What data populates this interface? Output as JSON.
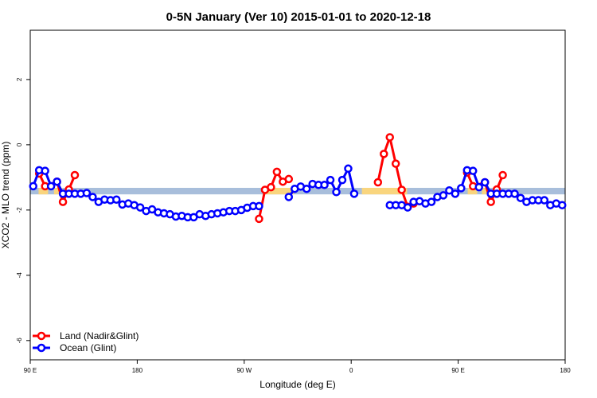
{
  "chart_data": {
    "type": "line",
    "title": "0-5N January (Ver 10)   2015-01-01 to 2020-12-18",
    "x_label": "Longitude (deg E)",
    "y_label": "XCO2 - MLO trend (ppm)",
    "xlim": [
      90,
      540
    ],
    "ylim": [
      3.51,
      -6.59
    ],
    "xticks": [
      {
        "value": 90,
        "label": "90 E"
      },
      180,
      {
        "value": 270,
        "label": "90 W"
      },
      {
        "value": 360,
        "label": "0"
      },
      {
        "value": 450,
        "label": "90 E"
      },
      {
        "value": 540,
        "label": "180"
      }
    ],
    "yticks": [
      -6,
      -4,
      -2,
      0,
      2
    ],
    "band": {
      "range": [
        -1.32,
        -1.52
      ],
      "color": "#a8bedb"
    },
    "highlights": {
      "color": "#f9d57e",
      "ranges": [
        [
          97,
          105
        ],
        [
          110,
          117
        ],
        [
          285.5,
          312
        ],
        [
          369,
          407
        ],
        [
          458,
          466
        ],
        [
          470,
          475.5
        ]
      ]
    },
    "legend": "bottom-left",
    "series": [
      {
        "name": "Land (Nadir&Glint)",
        "color": "#ff0000",
        "x": [
          97.5,
          102.5,
          112.5,
          117.5,
          122.5,
          127.5,
          null,
          282.5,
          287.5,
          292.5,
          297.5,
          302.5,
          307.5,
          null,
          382.5,
          387.5,
          392.5,
          397.5,
          402.5,
          407.5,
          412.5,
          null,
          457.5,
          462.5,
          472.5,
          477.5,
          482.5,
          487.5
        ],
        "values": [
          -0.88,
          -1.27,
          -1.13,
          -1.75,
          -1.37,
          -0.93,
          null,
          -2.27,
          -1.38,
          -1.3,
          -0.83,
          -1.13,
          -1.05,
          null,
          -1.15,
          -0.28,
          0.23,
          -0.58,
          -1.38,
          -1.9,
          -1.8,
          null,
          -0.85,
          -1.27,
          -1.15,
          -1.75,
          -1.37,
          -0.93
        ]
      },
      {
        "name": "Ocean (Glint)",
        "color": "#0000ff",
        "x": [
          92.5,
          97.5,
          102.5,
          107.5,
          112.5,
          117.5,
          122.5,
          127.5,
          132.5,
          137.5,
          142.5,
          147.5,
          152.5,
          157.5,
          162.5,
          167.5,
          172.5,
          177.5,
          182.5,
          187.5,
          192.5,
          197.5,
          202.5,
          207.5,
          212.5,
          217.5,
          222.5,
          227.5,
          232.5,
          237.5,
          242.5,
          247.5,
          252.5,
          257.5,
          262.5,
          267.5,
          272.5,
          277.5,
          282.5,
          null,
          307.5,
          312.5,
          317.5,
          322.5,
          327.5,
          332.5,
          337.5,
          342.5,
          347.5,
          352.5,
          357.5,
          362.5,
          null,
          392.5,
          397.5,
          402.5,
          407.5,
          412.5,
          417.5,
          422.5,
          427.5,
          432.5,
          437.5,
          442.5,
          447.5,
          452.5,
          457.5,
          462.5,
          467.5,
          472.5,
          477.5,
          482.5,
          487.5,
          492.5,
          497.5,
          502.5,
          507.5,
          512.5,
          517.5,
          522.5,
          527.5,
          532.5,
          537.5
        ],
        "values": [
          -1.27,
          -0.78,
          -0.8,
          -1.27,
          -1.13,
          -1.5,
          -1.5,
          -1.5,
          -1.5,
          -1.48,
          -1.6,
          -1.75,
          -1.68,
          -1.7,
          -1.68,
          -1.83,
          -1.8,
          -1.85,
          -1.92,
          -2.03,
          -1.98,
          -2.07,
          -2.1,
          -2.13,
          -2.2,
          -2.18,
          -2.22,
          -2.22,
          -2.13,
          -2.18,
          -2.13,
          -2.1,
          -2.07,
          -2.03,
          -2.03,
          -2.0,
          -1.93,
          -1.88,
          -1.88,
          null,
          -1.6,
          -1.35,
          -1.28,
          -1.35,
          -1.2,
          -1.23,
          -1.23,
          -1.08,
          -1.45,
          -1.08,
          -0.73,
          -1.5,
          null,
          -1.85,
          -1.85,
          -1.85,
          -1.92,
          -1.75,
          -1.73,
          -1.8,
          -1.75,
          -1.6,
          -1.55,
          -1.4,
          -1.5,
          -1.33,
          -0.78,
          -0.8,
          -1.3,
          -1.15,
          -1.5,
          -1.5,
          -1.5,
          -1.5,
          -1.5,
          -1.63,
          -1.75,
          -1.7,
          -1.7,
          -1.7,
          -1.85,
          -1.8,
          -1.85
        ]
      }
    ]
  }
}
